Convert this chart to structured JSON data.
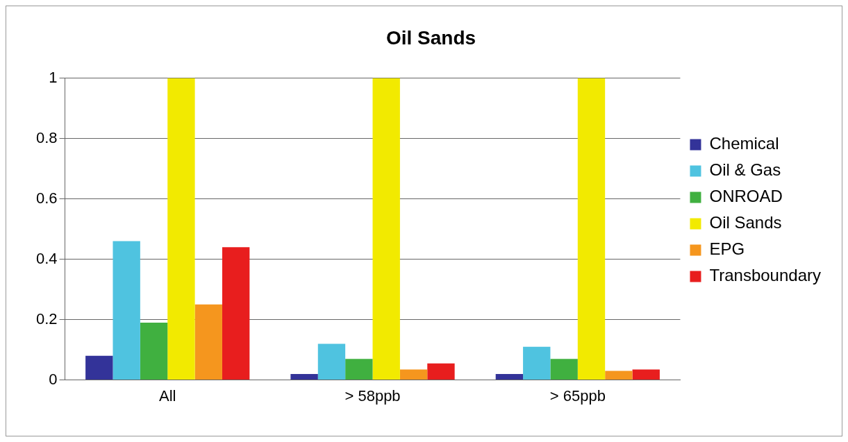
{
  "chart_data": {
    "type": "bar",
    "title": "Oil Sands",
    "categories": [
      "All",
      "> 58ppb",
      "> 65ppb"
    ],
    "series": [
      {
        "name": "Chemical",
        "color": "#333399",
        "values": [
          0.08,
          0.02,
          0.02
        ]
      },
      {
        "name": "Oil & Gas",
        "color": "#4fc3e0",
        "values": [
          0.46,
          0.12,
          0.11
        ]
      },
      {
        "name": "ONROAD",
        "color": "#40b040",
        "values": [
          0.19,
          0.07,
          0.07
        ]
      },
      {
        "name": "Oil Sands",
        "color": "#f2ea00",
        "values": [
          1,
          1,
          1
        ]
      },
      {
        "name": "EPG",
        "color": "#f5961e",
        "values": [
          0.25,
          0.035,
          0.03
        ]
      },
      {
        "name": "Transboundary",
        "color": "#e81e1e",
        "values": [
          0.44,
          0.055,
          0.035
        ]
      }
    ],
    "ylim": [
      0,
      1
    ],
    "yticks": [
      0,
      0.2,
      0.4,
      0.6,
      0.8,
      1
    ],
    "grid": "y",
    "legend": "right"
  }
}
